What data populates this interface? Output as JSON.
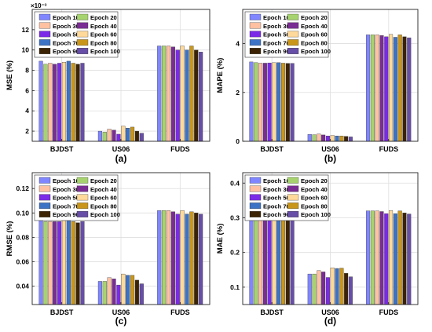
{
  "panel_colors": [
    "#7f86ff",
    "#a6d36e",
    "#ffc1a2",
    "#7a2d93",
    "#7b2be7",
    "#ffd99a",
    "#3c73c5",
    "#c9961b",
    "#3b2304",
    "#674ea7"
  ],
  "chart_data": [
    {
      "type": "bar",
      "panel_label": "(a)",
      "ylabel": "MSE (%)",
      "exponent_label": "×10⁻³",
      "categories": [
        "BJDST",
        "US06",
        "FUDS"
      ],
      "ylim": [
        0.001,
        0.014
      ],
      "yticks": [
        0.002,
        0.004,
        0.006,
        0.008,
        0.01,
        0.012
      ],
      "ytick_labels": [
        "2",
        "4",
        "6",
        "8",
        "10",
        "12"
      ],
      "grid": true,
      "legend": "top",
      "series": [
        {
          "name": "Epoch 10",
          "values": [
            0.0089,
            0.002,
            0.0104
          ]
        },
        {
          "name": "Epoch 20",
          "values": [
            0.0086,
            0.0019,
            0.0104
          ]
        },
        {
          "name": "Epoch 30",
          "values": [
            0.0087,
            0.0022,
            0.0104
          ]
        },
        {
          "name": "Epoch 40",
          "values": [
            0.0086,
            0.0021,
            0.0103
          ]
        },
        {
          "name": "Epoch 50",
          "values": [
            0.0087,
            0.0017,
            0.01
          ]
        },
        {
          "name": "Epoch 60",
          "values": [
            0.0088,
            0.0025,
            0.0104
          ]
        },
        {
          "name": "Epoch 70",
          "values": [
            0.0089,
            0.0023,
            0.01
          ]
        },
        {
          "name": "Epoch 80",
          "values": [
            0.0087,
            0.0024,
            0.0104
          ]
        },
        {
          "name": "Epoch 90",
          "values": [
            0.0086,
            0.002,
            0.01
          ]
        },
        {
          "name": "Epoch 100",
          "values": [
            0.0087,
            0.0018,
            0.0098
          ]
        }
      ]
    },
    {
      "type": "bar",
      "panel_label": "(b)",
      "ylabel": "MAPE (%)",
      "exponent_label": "",
      "categories": [
        "BJDST",
        "US06",
        "FUDS"
      ],
      "ylim": [
        0,
        5.4
      ],
      "yticks": [
        0,
        2,
        4
      ],
      "ytick_labels": [
        "0",
        "2",
        "4"
      ],
      "grid": true,
      "legend": "top",
      "series": [
        {
          "name": "Epoch 10",
          "values": [
            3.25,
            0.28,
            4.36
          ]
        },
        {
          "name": "Epoch 20",
          "values": [
            3.22,
            0.27,
            4.36
          ]
        },
        {
          "name": "Epoch 30",
          "values": [
            3.2,
            0.3,
            4.36
          ]
        },
        {
          "name": "Epoch 40",
          "values": [
            3.2,
            0.26,
            4.33
          ]
        },
        {
          "name": "Epoch 50",
          "values": [
            3.21,
            0.22,
            4.28
          ]
        },
        {
          "name": "Epoch 60",
          "values": [
            3.22,
            0.24,
            4.38
          ]
        },
        {
          "name": "Epoch 70",
          "values": [
            3.22,
            0.22,
            4.26
          ]
        },
        {
          "name": "Epoch 80",
          "values": [
            3.2,
            0.22,
            4.36
          ]
        },
        {
          "name": "Epoch 90",
          "values": [
            3.19,
            0.2,
            4.28
          ]
        },
        {
          "name": "Epoch 100",
          "values": [
            3.19,
            0.18,
            4.24
          ]
        }
      ]
    },
    {
      "type": "bar",
      "panel_label": "(c)",
      "ylabel": "RMSE (%)",
      "exponent_label": "",
      "categories": [
        "BJDST",
        "US06",
        "FUDS"
      ],
      "ylim": [
        0.025,
        0.133
      ],
      "yticks": [
        0.04,
        0.06,
        0.08,
        0.1,
        0.12
      ],
      "ytick_labels": [
        "0.04",
        "0.06",
        "0.08",
        "0.10",
        "0.12"
      ],
      "grid": true,
      "legend": "top",
      "series": [
        {
          "name": "Epoch 10",
          "values": [
            0.094,
            0.044,
            0.102
          ]
        },
        {
          "name": "Epoch 20",
          "values": [
            0.093,
            0.044,
            0.102
          ]
        },
        {
          "name": "Epoch 30",
          "values": [
            0.093,
            0.047,
            0.102
          ]
        },
        {
          "name": "Epoch 40",
          "values": [
            0.093,
            0.046,
            0.101
          ]
        },
        {
          "name": "Epoch 50",
          "values": [
            0.093,
            0.041,
            0.099
          ]
        },
        {
          "name": "Epoch 60",
          "values": [
            0.094,
            0.05,
            0.102
          ]
        },
        {
          "name": "Epoch 70",
          "values": [
            0.094,
            0.049,
            0.099
          ]
        },
        {
          "name": "Epoch 80",
          "values": [
            0.093,
            0.049,
            0.101
          ]
        },
        {
          "name": "Epoch 90",
          "values": [
            0.092,
            0.045,
            0.1
          ]
        },
        {
          "name": "Epoch 100",
          "values": [
            0.093,
            0.042,
            0.099
          ]
        }
      ]
    },
    {
      "type": "bar",
      "panel_label": "(d)",
      "ylabel": "MAE (%)",
      "exponent_label": "",
      "categories": [
        "BJDST",
        "US06",
        "FUDS"
      ],
      "ylim": [
        0.05,
        0.43
      ],
      "yticks": [
        0.1,
        0.2,
        0.3,
        0.4
      ],
      "ytick_labels": [
        "0.1",
        "0.2",
        "0.3",
        "0.4"
      ],
      "grid": true,
      "legend": "top",
      "series": [
        {
          "name": "Epoch 10",
          "values": [
            0.298,
            0.138,
            0.32
          ]
        },
        {
          "name": "Epoch 20",
          "values": [
            0.294,
            0.138,
            0.32
          ]
        },
        {
          "name": "Epoch 30",
          "values": [
            0.294,
            0.148,
            0.32
          ]
        },
        {
          "name": "Epoch 40",
          "values": [
            0.294,
            0.144,
            0.318
          ]
        },
        {
          "name": "Epoch 50",
          "values": [
            0.295,
            0.128,
            0.312
          ]
        },
        {
          "name": "Epoch 60",
          "values": [
            0.297,
            0.156,
            0.321
          ]
        },
        {
          "name": "Epoch 70",
          "values": [
            0.297,
            0.154,
            0.312
          ]
        },
        {
          "name": "Epoch 80",
          "values": [
            0.294,
            0.155,
            0.32
          ]
        },
        {
          "name": "Epoch 90",
          "values": [
            0.292,
            0.14,
            0.314
          ]
        },
        {
          "name": "Epoch 100",
          "values": [
            0.294,
            0.13,
            0.311
          ]
        }
      ]
    }
  ]
}
